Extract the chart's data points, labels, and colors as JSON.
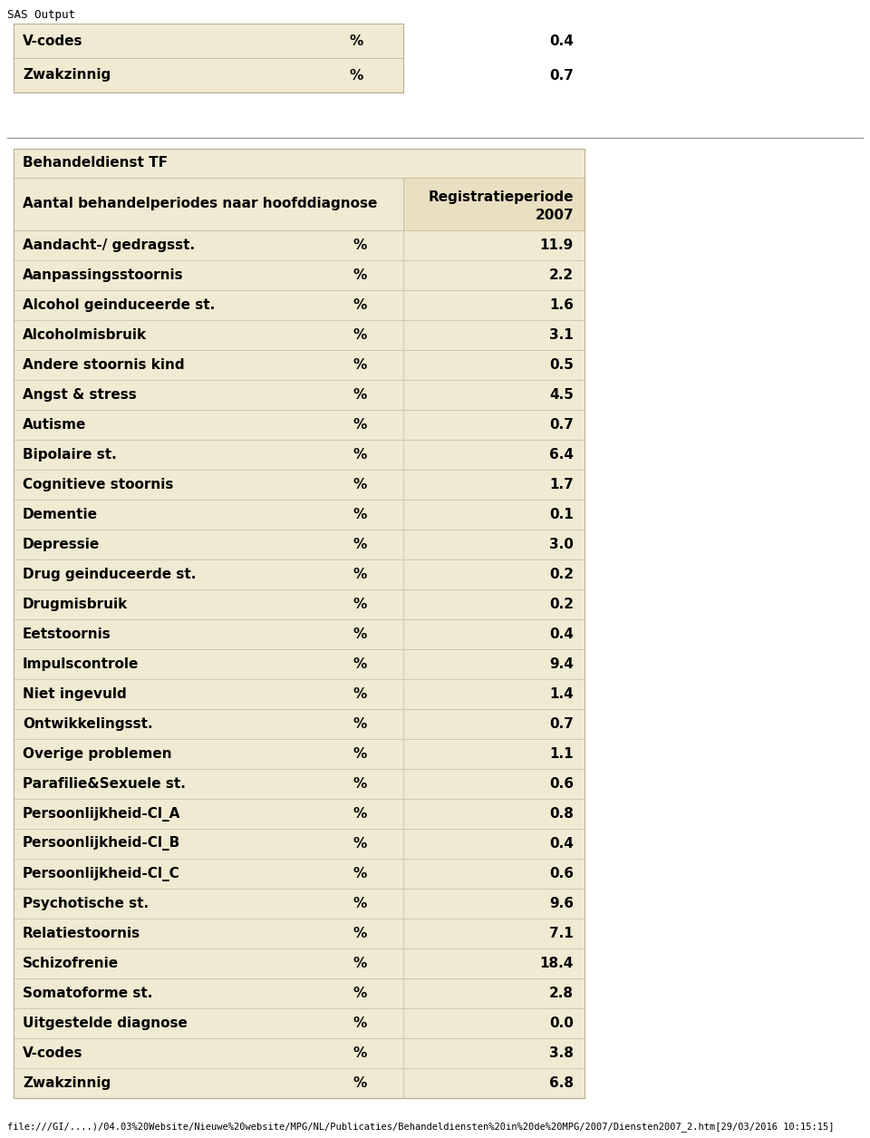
{
  "sas_output_label": "SAS Output",
  "footer": "file:///GI/....)/04.03%20Website/Nieuwe%20website/MPG/NL/Publicaties/Behandeldiensten%20in%20de%20MPG/2007/Diensten2007_2.htm[29/03/2016 10:15:15]",
  "top_table_rows": [
    [
      "V-codes",
      "%",
      "0.4"
    ],
    [
      "Zwakzinnig",
      "%",
      "0.7"
    ]
  ],
  "section_title": "Behandeldienst TF",
  "main_header_col1": "Aantal behandelperiodes naar hoofddiagnose",
  "main_header_col2a": "Registratieperiode",
  "main_header_col2b": "2007",
  "main_rows": [
    [
      "Aandacht-/ gedragsst.",
      "%",
      "11.9"
    ],
    [
      "Aanpassingsstoornis",
      "%",
      "2.2"
    ],
    [
      "Alcohol geinduceerde st.",
      "%",
      "1.6"
    ],
    [
      "Alcoholmisbruik",
      "%",
      "3.1"
    ],
    [
      "Andere stoornis kind",
      "%",
      "0.5"
    ],
    [
      "Angst & stress",
      "%",
      "4.5"
    ],
    [
      "Autisme",
      "%",
      "0.7"
    ],
    [
      "Bipolaire st.",
      "%",
      "6.4"
    ],
    [
      "Cognitieve stoornis",
      "%",
      "1.7"
    ],
    [
      "Dementie",
      "%",
      "0.1"
    ],
    [
      "Depressie",
      "%",
      "3.0"
    ],
    [
      "Drug geinduceerde st.",
      "%",
      "0.2"
    ],
    [
      "Drugmisbruik",
      "%",
      "0.2"
    ],
    [
      "Eetstoornis",
      "%",
      "0.4"
    ],
    [
      "Impulscontrole",
      "%",
      "9.4"
    ],
    [
      "Niet ingevuld",
      "%",
      "1.4"
    ],
    [
      "Ontwikkelingsst.",
      "%",
      "0.7"
    ],
    [
      "Overige problemen",
      "%",
      "1.1"
    ],
    [
      "Parafilie&Sexuele st.",
      "%",
      "0.6"
    ],
    [
      "Persoonlijkheid-Cl_A",
      "%",
      "0.8"
    ],
    [
      "Persoonlijkheid-Cl_B",
      "%",
      "0.4"
    ],
    [
      "Persoonlijkheid-Cl_C",
      "%",
      "0.6"
    ],
    [
      "Psychotische st.",
      "%",
      "9.6"
    ],
    [
      "Relatiestoornis",
      "%",
      "7.1"
    ],
    [
      "Schizofrenie",
      "%",
      "18.4"
    ],
    [
      "Somatoforme st.",
      "%",
      "2.8"
    ],
    [
      "Uitgestelde diagnose",
      "%",
      "0.0"
    ],
    [
      "V-codes",
      "%",
      "3.8"
    ],
    [
      "Zwakzinnig",
      "%",
      "6.8"
    ]
  ],
  "bg_beige": "#f0ead2",
  "bg_beige_dark": "#e8e0c0",
  "border_color": "#b8b090",
  "sep_color": "#999999",
  "font_size": 11,
  "font_family": "DejaVu Sans"
}
